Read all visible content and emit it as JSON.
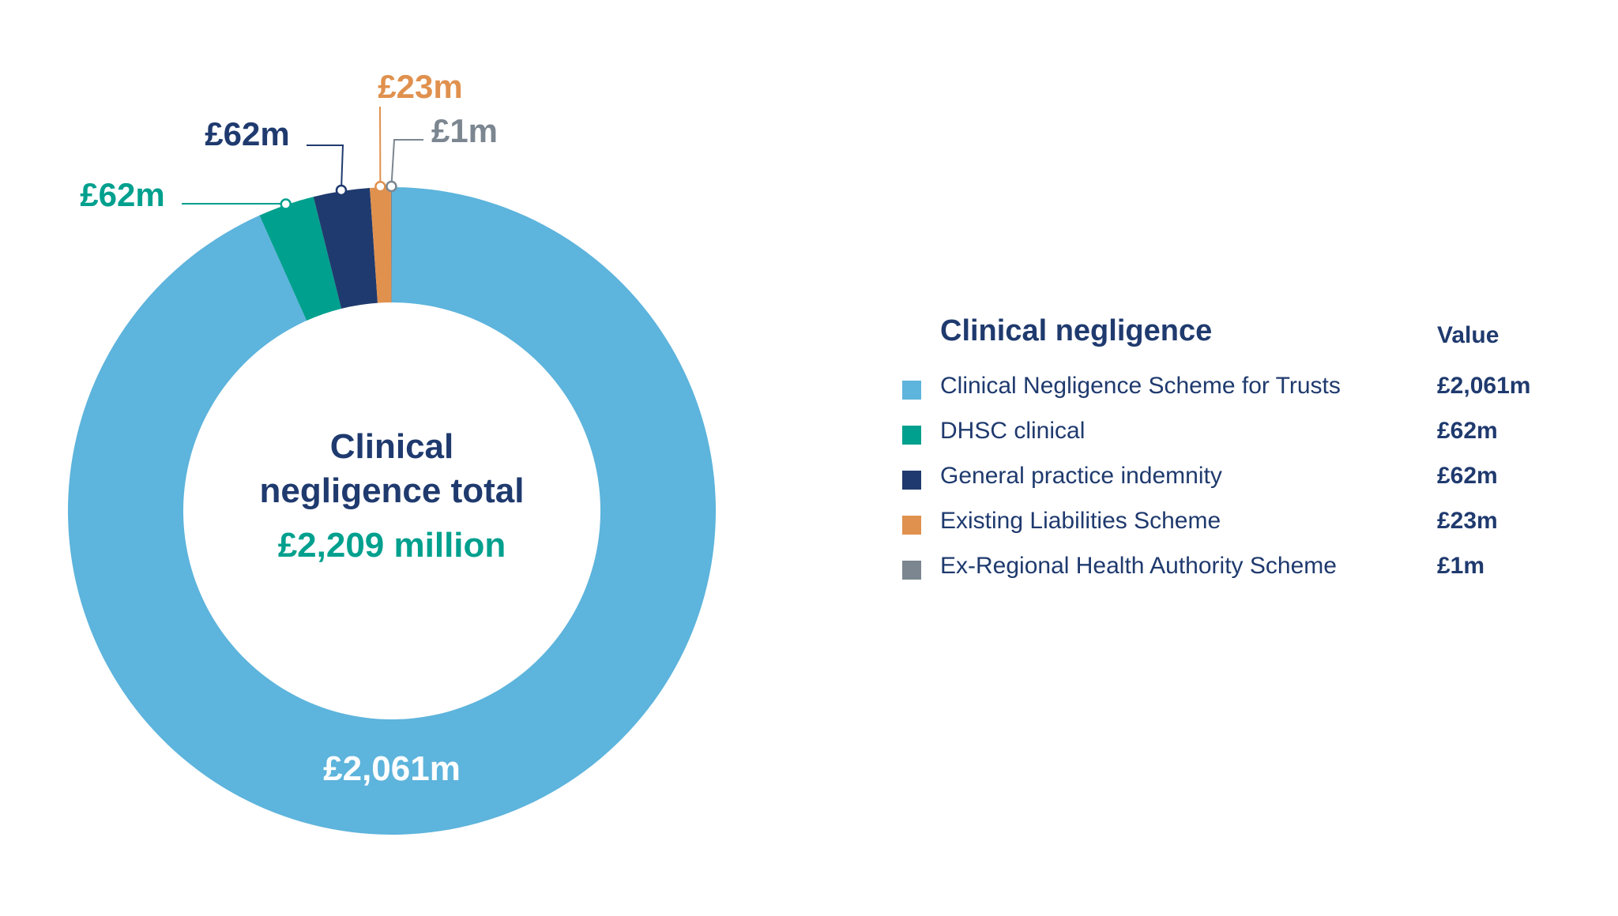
{
  "chart_data": {
    "type": "pie",
    "variant": "donut",
    "categories": [
      "Clinical Negligence Scheme for Trusts",
      "DHSC clinical",
      "General practice indemnity",
      "Existing Liabilities Scheme",
      "Ex-Regional Health Authority Scheme"
    ],
    "values": [
      2061,
      62,
      62,
      23,
      1
    ],
    "value_labels": [
      "£2,061m",
      "£62m",
      "£62m",
      "£23m",
      "£1m"
    ],
    "colors": [
      "#5db4dc",
      "#00a08e",
      "#1f3a6e",
      "#e0914e",
      "#7b8690"
    ],
    "center_label": {
      "line1": "Clinical",
      "line2": "negligence total",
      "total": "£2,209 million"
    },
    "legend": {
      "title": "Clinical negligence",
      "value_header": "Value",
      "placement": "right"
    }
  }
}
